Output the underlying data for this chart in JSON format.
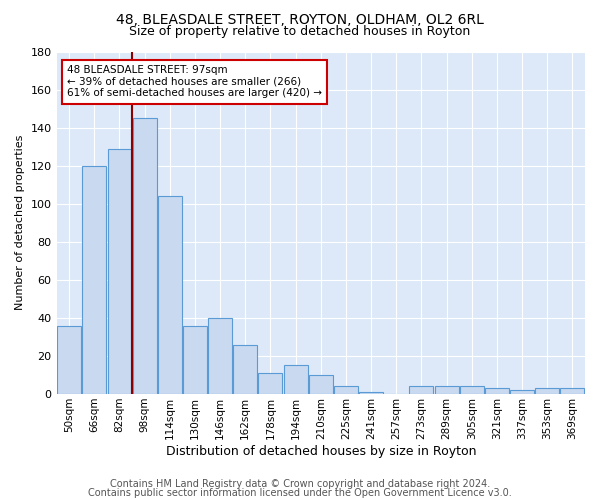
{
  "title1": "48, BLEASDALE STREET, ROYTON, OLDHAM, OL2 6RL",
  "title2": "Size of property relative to detached houses in Royton",
  "xlabel": "Distribution of detached houses by size in Royton",
  "ylabel": "Number of detached properties",
  "categories": [
    "50sqm",
    "66sqm",
    "82sqm",
    "98sqm",
    "114sqm",
    "130sqm",
    "146sqm",
    "162sqm",
    "178sqm",
    "194sqm",
    "210sqm",
    "225sqm",
    "241sqm",
    "257sqm",
    "273sqm",
    "289sqm",
    "305sqm",
    "321sqm",
    "337sqm",
    "353sqm",
    "369sqm"
  ],
  "values": [
    36,
    120,
    129,
    145,
    104,
    36,
    40,
    26,
    11,
    15,
    10,
    4,
    1,
    0,
    4,
    4,
    4,
    3,
    2,
    3,
    3
  ],
  "bar_color": "#c8d9f0",
  "bar_edge_color": "#5b9bd5",
  "red_line_index": 3,
  "annotation_text": "48 BLEASDALE STREET: 97sqm\n← 39% of detached houses are smaller (266)\n61% of semi-detached houses are larger (420) →",
  "annotation_box_color": "#ffffff",
  "annotation_box_edge": "#cc0000",
  "ylim": [
    0,
    180
  ],
  "yticks": [
    0,
    20,
    40,
    60,
    80,
    100,
    120,
    140,
    160,
    180
  ],
  "footer1": "Contains HM Land Registry data © Crown copyright and database right 2024.",
  "footer2": "Contains public sector information licensed under the Open Government Licence v3.0.",
  "fig_bg_color": "#ffffff",
  "plot_bg_color": "#dde9f8",
  "grid_color": "#ffffff",
  "title1_fontsize": 10,
  "title2_fontsize": 9,
  "xlabel_fontsize": 9,
  "ylabel_fontsize": 8,
  "footer_fontsize": 7
}
